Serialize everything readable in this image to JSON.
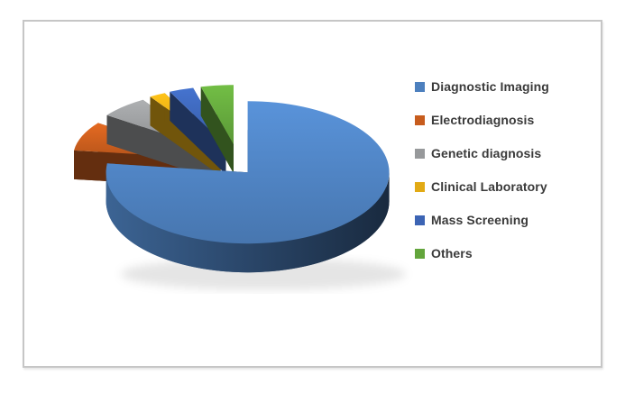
{
  "page": {
    "background": "#ffffff"
  },
  "chart_frame": {
    "border_color": "#c6c6c6",
    "background": "#ffffff"
  },
  "chart_data": {
    "type": "pie",
    "style": "3d-exploded",
    "title": "",
    "labels": [
      "Diagnostic Imaging",
      "Electrodiagnosis",
      "Genetic diagnosis",
      "Clinical Laboratory",
      "Mass Screening",
      "Others"
    ],
    "values": [
      77,
      8,
      6,
      2,
      3,
      4
    ],
    "value_unit": "percent (estimated from slice angles; no data labels shown in chart)",
    "colors": [
      "#4d80be",
      "#c75c1d",
      "#97999b",
      "#e2aa15",
      "#3c64b4",
      "#63a53c"
    ],
    "legend_position": "right",
    "start_angle_deg": 0,
    "direction": "clockwise",
    "grid": "off"
  }
}
